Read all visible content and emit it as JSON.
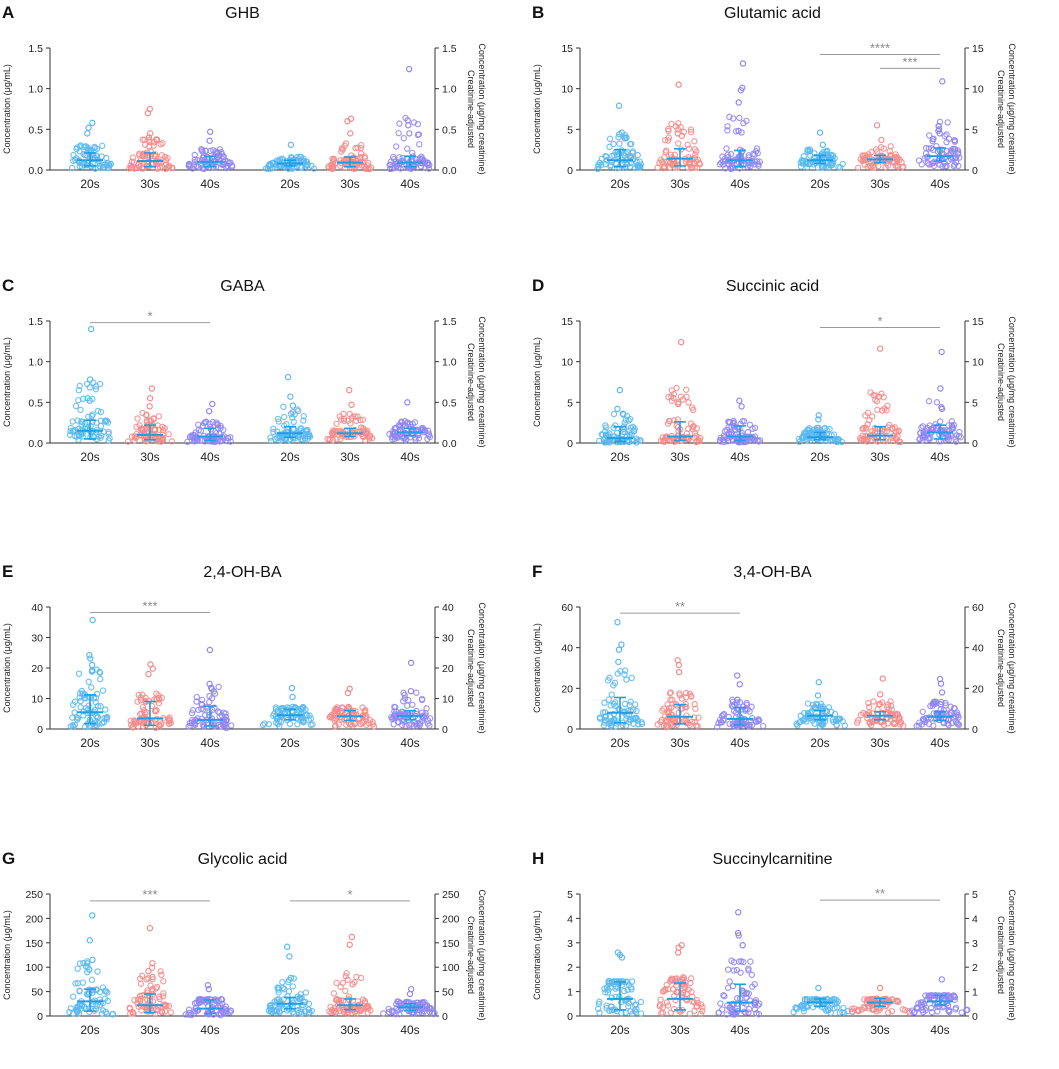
{
  "figure": {
    "colors": {
      "20s": "#5bb8ef",
      "30s": "#f48a8a",
      "40s": "#8f86f2",
      "error": "#1f9ee6",
      "sig": "#9a9a9a",
      "axis": "#333333"
    }
  },
  "chart_data": [
    {
      "letter": "A",
      "title": "GHB",
      "type": "scatter",
      "ylabel_left": "Concentration (μg/mL)",
      "ylabel_right": [
        "Creatinine-adjusted",
        "Concentration (μg/mg creatinine)"
      ],
      "ylim": [
        0,
        1.5
      ],
      "ticks": [
        "0.0",
        "0.5",
        "1.0",
        "1.5"
      ],
      "tick_values": [
        0,
        0.5,
        1.0,
        1.5
      ],
      "categories": [
        "20s",
        "30s",
        "40s",
        "20s",
        "30s",
        "40s"
      ],
      "groups": [
        {
          "name": "20s",
          "median": 0.12,
          "q1": 0.05,
          "q3": 0.21,
          "max": 0.58,
          "extras": [
            0.58,
            0.52,
            0.45
          ]
        },
        {
          "name": "30s",
          "median": 0.11,
          "q1": 0.04,
          "q3": 0.21,
          "max": 0.75,
          "extras": [
            0.75,
            0.7,
            0.45,
            0.4
          ]
        },
        {
          "name": "40s",
          "median": 0.1,
          "q1": 0.04,
          "q3": 0.17,
          "max": 0.47,
          "extras": [
            0.47,
            0.36
          ]
        },
        {
          "name": "20s",
          "median": 0.08,
          "q1": 0.05,
          "q3": 0.12,
          "max": 0.31,
          "extras": [
            0.31
          ]
        },
        {
          "name": "30s",
          "median": 0.09,
          "q1": 0.04,
          "q3": 0.16,
          "max": 0.63,
          "extras": [
            0.63,
            0.6,
            0.45
          ]
        },
        {
          "name": "40s",
          "median": 0.09,
          "q1": 0.04,
          "q3": 0.17,
          "max": 1.24,
          "extras": [
            1.24,
            0.61,
            0.55,
            0.45
          ]
        }
      ],
      "significance": []
    },
    {
      "letter": "B",
      "title": "Glutamic acid",
      "type": "scatter",
      "ylabel_left": "Concentration (μg/mL)",
      "ylabel_right": [
        "Creatinine-adjusted",
        "Concentration (μg/mg creatinine)"
      ],
      "ylim": [
        0,
        15
      ],
      "ticks": [
        "0",
        "5",
        "10",
        "15"
      ],
      "tick_values": [
        0,
        5,
        10,
        15
      ],
      "categories": [
        "20s",
        "30s",
        "40s",
        "20s",
        "30s",
        "40s"
      ],
      "groups": [
        {
          "name": "20s",
          "median": 1.2,
          "q1": 0.4,
          "q3": 2.5,
          "max": 7.9,
          "extras": [
            7.9,
            4.6,
            4.4
          ]
        },
        {
          "name": "30s",
          "median": 1.4,
          "q1": 0.5,
          "q3": 2.6,
          "max": 10.5,
          "extras": [
            10.5,
            4.5,
            4.2
          ]
        },
        {
          "name": "40s",
          "median": 1.2,
          "q1": 0.4,
          "q3": 2.4,
          "max": 13.1,
          "extras": [
            13.1,
            10.1,
            9.8,
            8.3,
            4.8
          ]
        },
        {
          "name": "20s",
          "median": 1.2,
          "q1": 0.8,
          "q3": 1.8,
          "max": 4.6,
          "extras": [
            4.6,
            3.1
          ]
        },
        {
          "name": "30s",
          "median": 1.3,
          "q1": 0.9,
          "q3": 1.8,
          "max": 5.5,
          "extras": [
            5.5,
            3.7
          ]
        },
        {
          "name": "40s",
          "median": 1.7,
          "q1": 1.1,
          "q3": 2.7,
          "max": 10.9,
          "extras": [
            10.9,
            5.4,
            5.0,
            4.5
          ]
        }
      ],
      "significance": [
        {
          "from": 3,
          "to": 5,
          "label": "****",
          "y": 14.2
        },
        {
          "from": 4,
          "to": 5,
          "label": "***",
          "y": 12.5
        }
      ]
    },
    {
      "letter": "C",
      "title": "GABA",
      "type": "scatter",
      "ylabel_left": "Concentration (μg/mL)",
      "ylabel_right": [
        "Creatinine-adjusted",
        "Concentration (μg/mg creatinine)"
      ],
      "ylim": [
        0,
        1.5
      ],
      "ticks": [
        "0.0",
        "0.5",
        "1.0",
        "1.5"
      ],
      "tick_values": [
        0,
        0.5,
        1.0,
        1.5
      ],
      "categories": [
        "20s",
        "30s",
        "40s",
        "20s",
        "30s",
        "40s"
      ],
      "groups": [
        {
          "name": "20s",
          "median": 0.15,
          "q1": 0.05,
          "q3": 0.28,
          "max": 1.4,
          "extras": [
            1.4,
            0.78,
            0.55,
            0.52
          ]
        },
        {
          "name": "30s",
          "median": 0.1,
          "q1": 0.04,
          "q3": 0.22,
          "max": 0.67,
          "extras": [
            0.67,
            0.55,
            0.45
          ]
        },
        {
          "name": "40s",
          "median": 0.08,
          "q1": 0.03,
          "q3": 0.18,
          "max": 0.48,
          "extras": [
            0.48,
            0.39
          ]
        },
        {
          "name": "20s",
          "median": 0.12,
          "q1": 0.07,
          "q3": 0.2,
          "max": 0.81,
          "extras": [
            0.81,
            0.57,
            0.46
          ]
        },
        {
          "name": "30s",
          "median": 0.12,
          "q1": 0.08,
          "q3": 0.18,
          "max": 0.65,
          "extras": [
            0.65,
            0.47
          ]
        },
        {
          "name": "40s",
          "median": 0.13,
          "q1": 0.09,
          "q3": 0.18,
          "max": 0.5,
          "extras": [
            0.5
          ]
        }
      ],
      "significance": [
        {
          "from": 0,
          "to": 2,
          "label": "*",
          "y": 1.48
        }
      ]
    },
    {
      "letter": "D",
      "title": "Succinic acid",
      "type": "scatter",
      "ylabel_left": "Concentration (μg/mL)",
      "ylabel_right": [
        "Creatinine-adjusted",
        "Concentration (μg/mg creatinine)"
      ],
      "ylim": [
        0,
        15
      ],
      "ticks": [
        "0",
        "5",
        "10",
        "15"
      ],
      "tick_values": [
        0,
        5,
        10,
        15
      ],
      "categories": [
        "20s",
        "30s",
        "40s",
        "20s",
        "30s",
        "40s"
      ],
      "groups": [
        {
          "name": "20s",
          "median": 0.6,
          "q1": 0.2,
          "q3": 2.0,
          "max": 6.5,
          "extras": [
            6.5,
            4.2,
            3.6
          ]
        },
        {
          "name": "30s",
          "median": 0.8,
          "q1": 0.3,
          "q3": 2.6,
          "max": 12.4,
          "extras": [
            12.4,
            5.0,
            4.8
          ]
        },
        {
          "name": "40s",
          "median": 0.8,
          "q1": 0.3,
          "q3": 2.1,
          "max": 5.2,
          "extras": [
            5.2,
            4.5
          ]
        },
        {
          "name": "20s",
          "median": 0.7,
          "q1": 0.4,
          "q3": 1.3,
          "max": 3.4,
          "extras": [
            3.4,
            2.9
          ]
        },
        {
          "name": "30s",
          "median": 0.9,
          "q1": 0.4,
          "q3": 2.0,
          "max": 11.6,
          "extras": [
            11.6,
            5.7,
            4.0
          ]
        },
        {
          "name": "40s",
          "median": 1.3,
          "q1": 0.5,
          "q3": 2.2,
          "max": 11.2,
          "extras": [
            11.2,
            6.7,
            4.4,
            4.2
          ]
        }
      ],
      "significance": [
        {
          "from": 3,
          "to": 5,
          "label": "*",
          "y": 14.2
        }
      ]
    },
    {
      "letter": "E",
      "title": "2,4-OH-BA",
      "type": "scatter",
      "ylabel_left": "Concentration (μg/mL)",
      "ylabel_right": [
        "Creatinine-adjusted",
        "Concentration (μg/mg creatinine)"
      ],
      "ylim": [
        0,
        40
      ],
      "ticks": [
        "0",
        "10",
        "20",
        "30",
        "40"
      ],
      "tick_values": [
        0,
        10,
        20,
        30,
        40
      ],
      "categories": [
        "20s",
        "30s",
        "40s",
        "20s",
        "30s",
        "40s"
      ],
      "groups": [
        {
          "name": "20s",
          "median": 5.5,
          "q1": 1.8,
          "q3": 11.2,
          "max": 35.7,
          "extras": [
            35.7,
            24.2,
            23.1,
            21.0
          ]
        },
        {
          "name": "30s",
          "median": 3.5,
          "q1": 1.2,
          "q3": 9.0,
          "max": 21.2,
          "extras": [
            21.2,
            19.8,
            18.0
          ]
        },
        {
          "name": "40s",
          "median": 3.0,
          "q1": 1.0,
          "q3": 7.5,
          "max": 25.9,
          "extras": [
            25.9,
            14.8,
            13.5
          ]
        },
        {
          "name": "20s",
          "median": 4.5,
          "q1": 3.0,
          "q3": 6.5,
          "max": 13.4,
          "extras": [
            13.4,
            10.5
          ]
        },
        {
          "name": "30s",
          "median": 4.2,
          "q1": 2.8,
          "q3": 6.0,
          "max": 13.2,
          "extras": [
            13.2,
            11.8
          ]
        },
        {
          "name": "40s",
          "median": 4.3,
          "q1": 3.0,
          "q3": 6.0,
          "max": 21.7,
          "extras": [
            21.7,
            12.4
          ]
        }
      ],
      "significance": [
        {
          "from": 0,
          "to": 2,
          "label": "***",
          "y": 38.2
        }
      ]
    },
    {
      "letter": "F",
      "title": "3,4-OH-BA",
      "type": "scatter",
      "ylabel_left": "Concentration (μg/mL)",
      "ylabel_right": [
        "Creatinine-adjusted",
        "Concentration (μg/mg creatinine)"
      ],
      "ylim": [
        0,
        60
      ],
      "ticks": [
        "0",
        "20",
        "40",
        "60"
      ],
      "tick_values": [
        0,
        20,
        40,
        60
      ],
      "categories": [
        "20s",
        "30s",
        "40s",
        "20s",
        "30s",
        "40s"
      ],
      "groups": [
        {
          "name": "20s",
          "median": 8.0,
          "q1": 3.0,
          "q3": 15.5,
          "max": 52.5,
          "extras": [
            52.5,
            41.5,
            39.0,
            33.0
          ]
        },
        {
          "name": "30s",
          "median": 6.0,
          "q1": 2.5,
          "q3": 12.0,
          "max": 33.8,
          "extras": [
            33.8,
            31.5,
            28.0
          ]
        },
        {
          "name": "40s",
          "median": 5.0,
          "q1": 2.0,
          "q3": 10.5,
          "max": 26.3,
          "extras": [
            26.3,
            22.0
          ]
        },
        {
          "name": "20s",
          "median": 6.5,
          "q1": 4.5,
          "q3": 9.0,
          "max": 23.0,
          "extras": [
            23.0,
            16.5
          ]
        },
        {
          "name": "30s",
          "median": 6.5,
          "q1": 4.5,
          "q3": 8.5,
          "max": 24.8,
          "extras": [
            24.8,
            17.0
          ]
        },
        {
          "name": "40s",
          "median": 6.0,
          "q1": 4.2,
          "q3": 8.5,
          "max": 24.6,
          "extras": [
            24.6,
            22.3,
            18.0
          ]
        }
      ],
      "significance": [
        {
          "from": 0,
          "to": 2,
          "label": "**",
          "y": 57.0
        }
      ]
    },
    {
      "letter": "G",
      "title": "Glycolic acid",
      "type": "scatter",
      "ylabel_left": "Concentration (μg/mL)",
      "ylabel_right": [
        "Creatinine-adjusted",
        "Concentration (μg/mg creatinine)"
      ],
      "ylim": [
        0,
        250
      ],
      "ticks": [
        "0",
        "50",
        "100",
        "150",
        "200",
        "250"
      ],
      "tick_values": [
        0,
        50,
        100,
        150,
        200,
        250
      ],
      "categories": [
        "20s",
        "30s",
        "40s",
        "20s",
        "30s",
        "40s"
      ],
      "groups": [
        {
          "name": "20s",
          "median": 30,
          "q1": 10,
          "q3": 55,
          "max": 206,
          "extras": [
            206,
            155,
            115,
            108,
            95
          ]
        },
        {
          "name": "30s",
          "median": 22,
          "q1": 7,
          "q3": 45,
          "max": 180,
          "extras": [
            180,
            108,
            92,
            80
          ]
        },
        {
          "name": "40s",
          "median": 15,
          "q1": 5,
          "q3": 33,
          "max": 63,
          "extras": [
            63,
            55
          ]
        },
        {
          "name": "20s",
          "median": 25,
          "q1": 15,
          "q3": 38,
          "max": 142,
          "extras": [
            142,
            122,
            78
          ]
        },
        {
          "name": "30s",
          "median": 22,
          "q1": 13,
          "q3": 35,
          "max": 162,
          "extras": [
            162,
            146,
            65
          ]
        },
        {
          "name": "40s",
          "median": 18,
          "q1": 11,
          "q3": 25,
          "max": 55,
          "extras": [
            55,
            45
          ]
        }
      ],
      "significance": [
        {
          "from": 0,
          "to": 2,
          "label": "***",
          "y": 236
        },
        {
          "from": 3,
          "to": 5,
          "label": "*",
          "y": 236
        }
      ]
    },
    {
      "letter": "H",
      "title": "Succinylcarnitine",
      "type": "scatter",
      "ylabel_left": "Concentration (μg/mL)",
      "ylabel_right": [
        "Creatinine-adjusted",
        "Concentration (μg/mg creatinine)"
      ],
      "ylim": [
        0,
        5
      ],
      "ticks": [
        "0",
        "1",
        "2",
        "3",
        "4",
        "5"
      ],
      "tick_values": [
        0,
        1,
        2,
        3,
        4,
        5
      ],
      "categories": [
        "20s",
        "30s",
        "40s",
        "20s",
        "30s",
        "40s"
      ],
      "groups": [
        {
          "name": "20s",
          "median": 0.7,
          "q1": 0.25,
          "q3": 1.4,
          "max": 2.6,
          "extras": [
            2.6,
            2.5,
            2.4
          ]
        },
        {
          "name": "30s",
          "median": 0.7,
          "q1": 0.25,
          "q3": 1.35,
          "max": 2.9,
          "extras": [
            2.9,
            2.8,
            2.6
          ]
        },
        {
          "name": "40s",
          "median": 0.55,
          "q1": 0.2,
          "q3": 1.3,
          "max": 4.25,
          "extras": [
            4.25,
            3.4,
            3.3,
            2.9
          ]
        },
        {
          "name": "20s",
          "median": 0.55,
          "q1": 0.4,
          "q3": 0.7,
          "max": 1.15,
          "extras": [
            1.15
          ]
        },
        {
          "name": "30s",
          "median": 0.55,
          "q1": 0.4,
          "q3": 0.72,
          "max": 1.15,
          "extras": [
            1.15
          ]
        },
        {
          "name": "40s",
          "median": 0.6,
          "q1": 0.45,
          "q3": 0.85,
          "max": 1.5,
          "extras": [
            1.5
          ]
        }
      ],
      "significance": [
        {
          "from": 3,
          "to": 5,
          "label": "**",
          "y": 4.75
        }
      ]
    }
  ]
}
